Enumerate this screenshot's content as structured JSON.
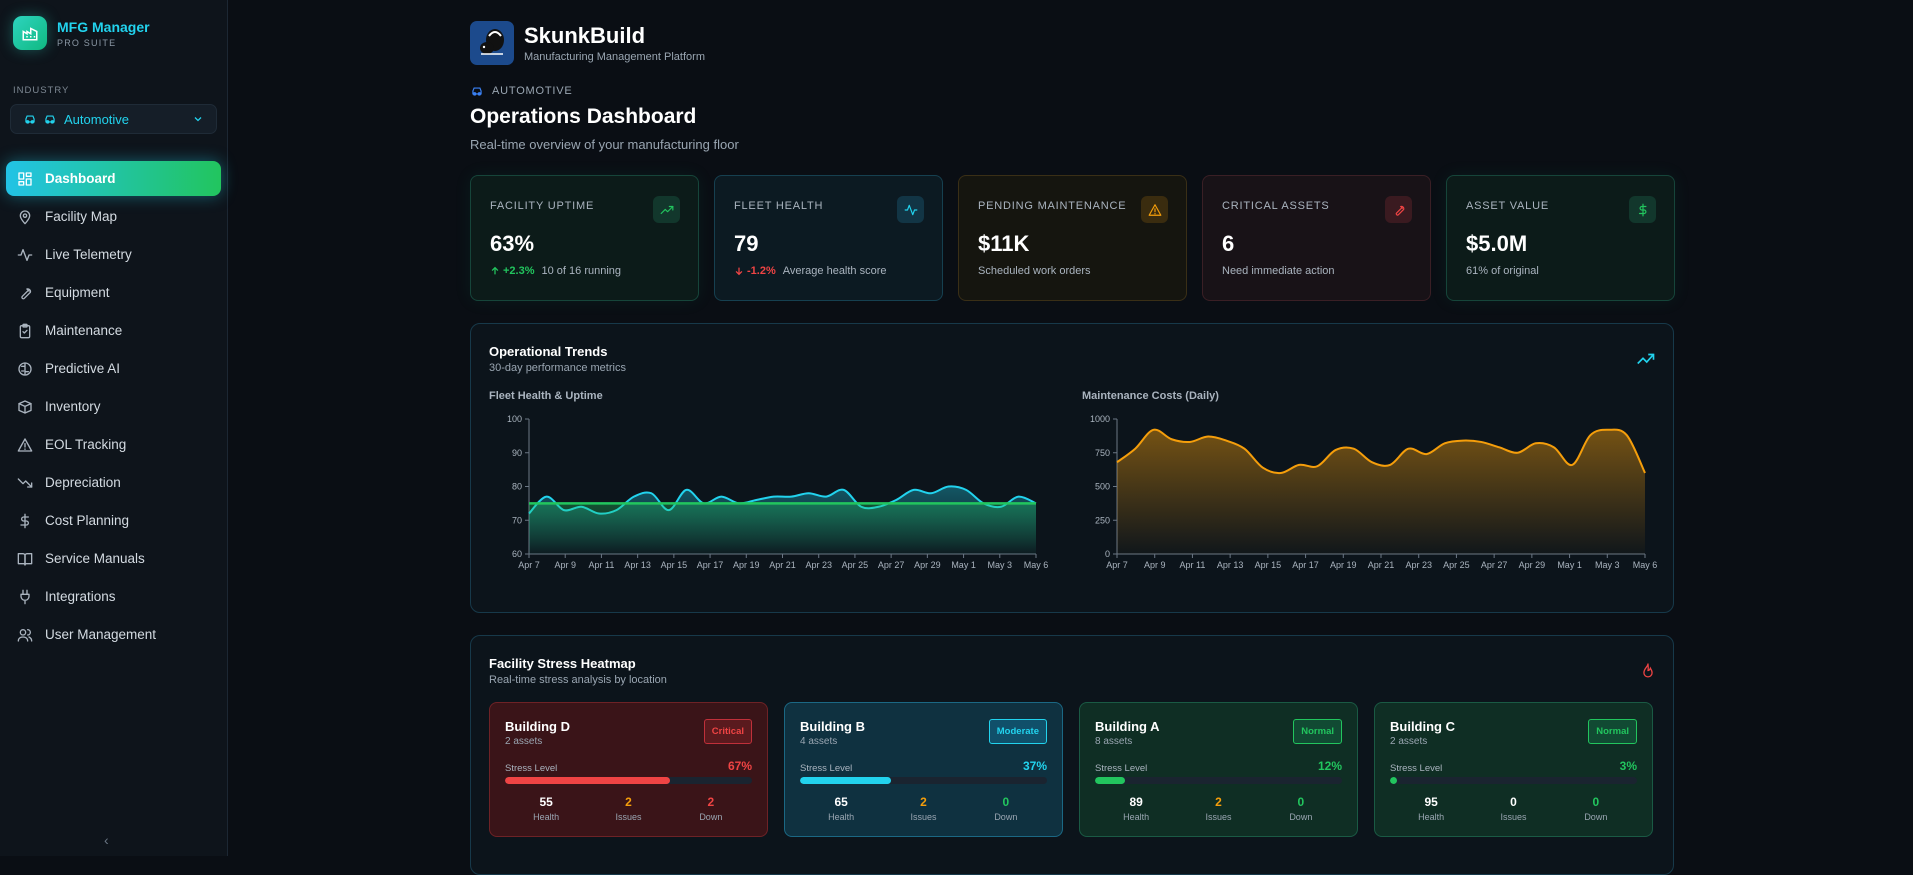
{
  "sidebar": {
    "brand_name": "MFG Manager",
    "brand_sub": "PRO SUITE",
    "industry_label": "INDUSTRY",
    "industry_value": "Automotive",
    "nav": [
      {
        "label": "Dashboard",
        "icon": "dashboard-icon",
        "active": true
      },
      {
        "label": "Facility Map",
        "icon": "map-pin-icon"
      },
      {
        "label": "Live Telemetry",
        "icon": "activity-icon"
      },
      {
        "label": "Equipment",
        "icon": "wrench-icon"
      },
      {
        "label": "Maintenance",
        "icon": "clipboard-icon"
      },
      {
        "label": "Predictive AI",
        "icon": "brain-icon"
      },
      {
        "label": "Inventory",
        "icon": "package-icon"
      },
      {
        "label": "EOL Tracking",
        "icon": "warning-triangle-icon"
      },
      {
        "label": "Depreciation",
        "icon": "trending-down-icon"
      },
      {
        "label": "Cost Planning",
        "icon": "dollar-icon"
      },
      {
        "label": "Service Manuals",
        "icon": "book-icon"
      },
      {
        "label": "Integrations",
        "icon": "plug-icon"
      },
      {
        "label": "User Management",
        "icon": "users-icon"
      }
    ],
    "collapse_glyph": "‹"
  },
  "header": {
    "app_name": "SkunkBuild",
    "app_sub": "Manufacturing Management Platform",
    "crumb": "AUTOMOTIVE",
    "title": "Operations Dashboard",
    "subtitle": "Real-time overview of your manufacturing floor"
  },
  "kpis": [
    {
      "label": "FACILITY UPTIME",
      "value": "63%",
      "delta": "+2.3%",
      "delta_dir": "up",
      "foot": "10 of 16 running",
      "tone": "g",
      "icon": "trending-up-icon"
    },
    {
      "label": "FLEET HEALTH",
      "value": "79",
      "delta": "-1.2%",
      "delta_dir": "down",
      "foot": "Average health score",
      "tone": "c",
      "icon": "activity-icon"
    },
    {
      "label": "PENDING MAINTENANCE",
      "value": "$11K",
      "delta": "",
      "foot": "Scheduled work orders",
      "tone": "o",
      "icon": "warning-triangle-icon"
    },
    {
      "label": "CRITICAL ASSETS",
      "value": "6",
      "delta": "",
      "foot": "Need immediate action",
      "tone": "r",
      "icon": "wrench-icon"
    },
    {
      "label": "ASSET VALUE",
      "value": "$5.0M",
      "delta": "",
      "foot": "61% of original",
      "tone": "g",
      "icon": "dollar-icon"
    }
  ],
  "trends": {
    "title": "Operational Trends",
    "subtitle": "30-day performance metrics",
    "left_label": "Fleet Health & Uptime",
    "right_label": "Maintenance Costs (Daily)"
  },
  "chart_data": [
    {
      "type": "area",
      "title": "Fleet Health & Uptime",
      "ylim": [
        60,
        100
      ],
      "yticks": [
        60,
        70,
        80,
        90,
        100
      ],
      "xticks": [
        "Apr 7",
        "Apr 9",
        "Apr 11",
        "Apr 13",
        "Apr 15",
        "Apr 17",
        "Apr 19",
        "Apr 21",
        "Apr 23",
        "Apr 25",
        "Apr 27",
        "Apr 29",
        "May 1",
        "May 3",
        "May 6"
      ],
      "series": [
        {
          "color": "#22d3ee",
          "values": [
            72,
            77,
            73,
            74,
            72,
            73,
            77,
            78,
            73,
            79,
            75,
            77,
            75,
            76,
            77,
            77,
            78,
            77,
            79,
            74,
            74,
            76,
            79,
            78,
            80,
            79,
            75,
            74,
            77,
            75
          ]
        },
        {
          "color": "#22c55e",
          "values": [
            75,
            75,
            75,
            75,
            75,
            75,
            75,
            75,
            75,
            75,
            75,
            75,
            75,
            75,
            75,
            75,
            75,
            75,
            75,
            75,
            75,
            75,
            75,
            75,
            75,
            75,
            75,
            75,
            75,
            75
          ]
        }
      ]
    },
    {
      "type": "area",
      "title": "Maintenance Costs (Daily)",
      "ylim": [
        0,
        1000
      ],
      "yticks": [
        0,
        250,
        500,
        750,
        1000
      ],
      "xticks": [
        "Apr 7",
        "Apr 9",
        "Apr 11",
        "Apr 13",
        "Apr 15",
        "Apr 17",
        "Apr 19",
        "Apr 21",
        "Apr 23",
        "Apr 25",
        "Apr 27",
        "Apr 29",
        "May 1",
        "May 3",
        "May 6"
      ],
      "series": [
        {
          "color": "#f59e0b",
          "values": [
            680,
            780,
            920,
            850,
            830,
            870,
            840,
            780,
            640,
            600,
            660,
            650,
            770,
            780,
            680,
            660,
            780,
            740,
            820,
            840,
            830,
            790,
            750,
            820,
            790,
            660,
            880,
            920,
            880,
            600
          ]
        }
      ]
    }
  ],
  "heatmap": {
    "title": "Facility Stress Heatmap",
    "subtitle": "Real-time stress analysis by location",
    "stress_label": "Stress Level",
    "health_label": "Health",
    "issues_label": "Issues",
    "down_label": "Down",
    "buildings": [
      {
        "name": "Building D",
        "assets": "2 assets",
        "badge": "Critical",
        "stress": 67,
        "pct": "67%",
        "health": "55",
        "issues": "2",
        "down": "2",
        "tone": "red"
      },
      {
        "name": "Building B",
        "assets": "4 assets",
        "badge": "Moderate",
        "stress": 37,
        "pct": "37%",
        "health": "65",
        "issues": "2",
        "down": "0",
        "tone": "cyan"
      },
      {
        "name": "Building A",
        "assets": "8 assets",
        "badge": "Normal",
        "stress": 12,
        "pct": "12%",
        "health": "89",
        "issues": "2",
        "down": "0",
        "tone": "green"
      },
      {
        "name": "Building C",
        "assets": "2 assets",
        "badge": "Normal",
        "stress": 3,
        "pct": "3%",
        "health": "95",
        "issues": "0",
        "down": "0",
        "tone": "green"
      }
    ]
  }
}
